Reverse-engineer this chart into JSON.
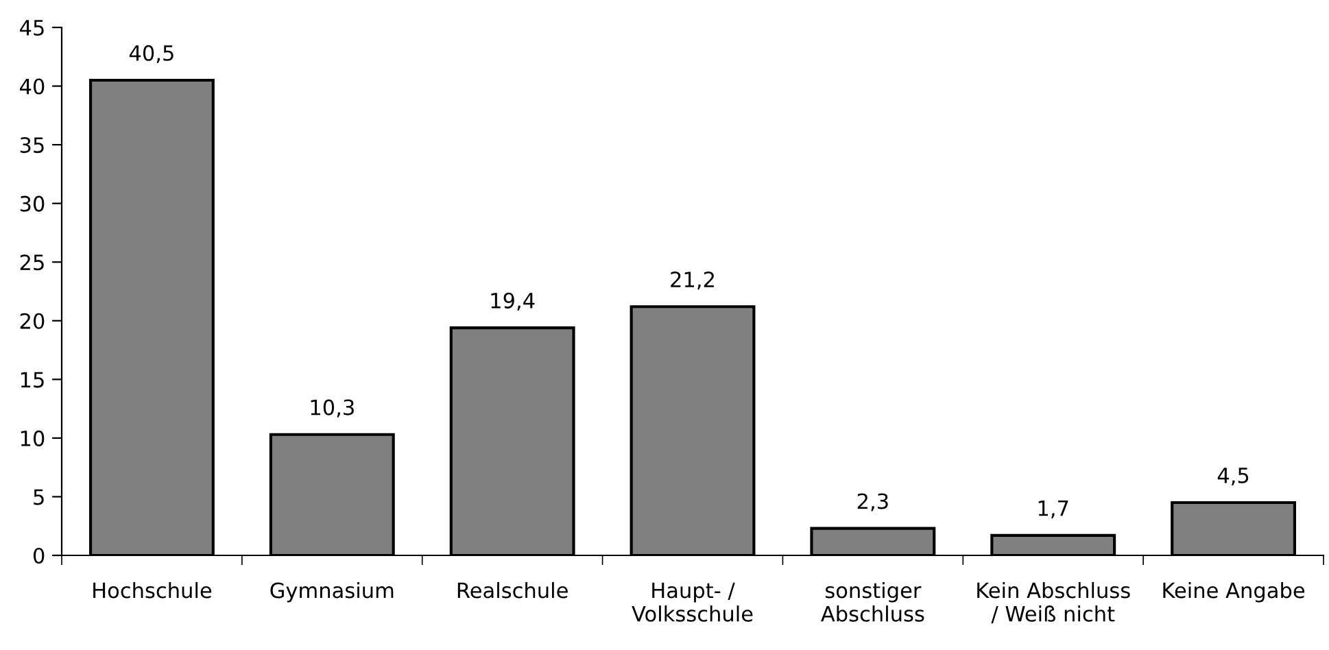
{
  "chart_data": {
    "type": "bar",
    "categories": [
      "Hochschule",
      "Gymnasium",
      "Realschule",
      "Haupt- /\nVolksschule",
      "sonstiger\nAbschluss",
      "Kein Abschluss\n/ Weiß nicht",
      "Keine Angabe"
    ],
    "values": [
      40.5,
      10.3,
      19.4,
      21.2,
      2.3,
      1.7,
      4.5
    ],
    "value_labels": [
      "40,5",
      "10,3",
      "19,4",
      "21,2",
      "2,3",
      "1,7",
      "4,5"
    ],
    "color": "#808080",
    "ylim": [
      0,
      45
    ],
    "yticks": [
      0,
      5,
      10,
      15,
      20,
      25,
      30,
      35,
      40,
      45
    ],
    "grid": false,
    "legend": false
  }
}
